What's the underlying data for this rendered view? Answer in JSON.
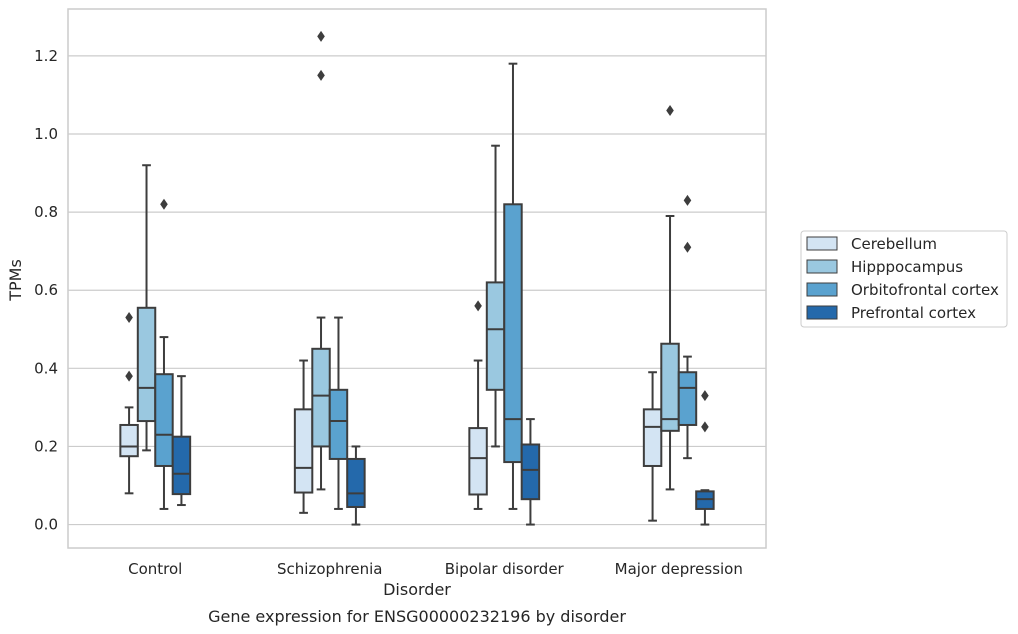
{
  "caption": "Gene expression for ENSG00000232196 by disorder",
  "chart_data": {
    "type": "box",
    "title": "",
    "xlabel": "Disorder",
    "ylabel": "TPMs",
    "ylim": [
      -0.06,
      1.32
    ],
    "yticks": [
      "0.0",
      "0.2",
      "0.4",
      "0.6",
      "0.8",
      "1.0",
      "1.2"
    ],
    "categories": [
      "Control",
      "Schizophrenia",
      "Bipolar disorder",
      "Major depression"
    ],
    "grid": "horizontal",
    "legend_position": "right",
    "series": [
      {
        "name": "Cerebellum",
        "color": "#d3e4f3",
        "boxes": [
          {
            "whislo": 0.08,
            "q1": 0.175,
            "med": 0.2,
            "q3": 0.255,
            "whishi": 0.3,
            "fliers": [
              0.38,
              0.53
            ]
          },
          {
            "whislo": 0.03,
            "q1": 0.082,
            "med": 0.145,
            "q3": 0.295,
            "whishi": 0.42,
            "fliers": []
          },
          {
            "whislo": 0.04,
            "q1": 0.077,
            "med": 0.17,
            "q3": 0.247,
            "whishi": 0.42,
            "fliers": [
              0.56
            ]
          },
          {
            "whislo": 0.01,
            "q1": 0.15,
            "med": 0.25,
            "q3": 0.295,
            "whishi": 0.39,
            "fliers": []
          }
        ]
      },
      {
        "name": "Hipppocampus",
        "color": "#9ac8e0",
        "boxes": [
          {
            "whislo": 0.19,
            "q1": 0.265,
            "med": 0.35,
            "q3": 0.555,
            "whishi": 0.92,
            "fliers": []
          },
          {
            "whislo": 0.09,
            "q1": 0.2,
            "med": 0.33,
            "q3": 0.45,
            "whishi": 0.53,
            "fliers": [
              1.15,
              1.25
            ]
          },
          {
            "whislo": 0.2,
            "q1": 0.345,
            "med": 0.5,
            "q3": 0.62,
            "whishi": 0.97,
            "fliers": []
          },
          {
            "whislo": 0.09,
            "q1": 0.24,
            "med": 0.27,
            "q3": 0.463,
            "whishi": 0.79,
            "fliers": [
              1.06
            ]
          }
        ]
      },
      {
        "name": "Orbitofrontal cortex",
        "color": "#5aa2cf",
        "boxes": [
          {
            "whislo": 0.04,
            "q1": 0.15,
            "med": 0.23,
            "q3": 0.385,
            "whishi": 0.48,
            "fliers": [
              0.82
            ]
          },
          {
            "whislo": 0.04,
            "q1": 0.168,
            "med": 0.265,
            "q3": 0.345,
            "whishi": 0.53,
            "fliers": []
          },
          {
            "whislo": 0.04,
            "q1": 0.16,
            "med": 0.27,
            "q3": 0.82,
            "whishi": 1.18,
            "fliers": []
          },
          {
            "whislo": 0.17,
            "q1": 0.255,
            "med": 0.35,
            "q3": 0.39,
            "whishi": 0.43,
            "fliers": [
              0.71,
              0.83
            ]
          }
        ]
      },
      {
        "name": "Prefrontal cortex",
        "color": "#2469ab",
        "boxes": [
          {
            "whislo": 0.05,
            "q1": 0.078,
            "med": 0.13,
            "q3": 0.225,
            "whishi": 0.38,
            "fliers": []
          },
          {
            "whislo": 0.0,
            "q1": 0.045,
            "med": 0.08,
            "q3": 0.168,
            "whishi": 0.2,
            "fliers": []
          },
          {
            "whislo": 0.0,
            "q1": 0.065,
            "med": 0.14,
            "q3": 0.205,
            "whishi": 0.27,
            "fliers": []
          },
          {
            "whislo": 0.0,
            "q1": 0.04,
            "med": 0.065,
            "q3": 0.085,
            "whishi": 0.088,
            "fliers": [
              0.25,
              0.33
            ]
          }
        ]
      }
    ]
  }
}
